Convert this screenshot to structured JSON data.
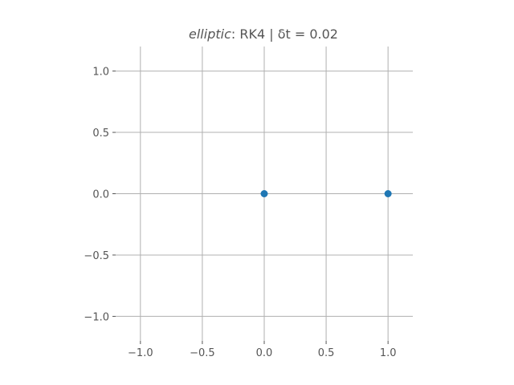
{
  "chart_data": {
    "type": "scatter",
    "title": {
      "italic_part": "elliptic",
      "rest": ": RK4 | δt = 0.02"
    },
    "xlabel": "",
    "ylabel": "",
    "xlim": [
      -1.2,
      1.2
    ],
    "ylim": [
      -1.2,
      1.2
    ],
    "xticks": [
      -1.0,
      -0.5,
      0.0,
      0.5,
      1.0
    ],
    "yticks": [
      -1.0,
      -0.5,
      0.0,
      0.5,
      1.0
    ],
    "xtick_labels": [
      "−1.0",
      "−0.5",
      "0.0",
      "0.5",
      "1.0"
    ],
    "ytick_labels": [
      "−1.0",
      "−0.5",
      "0.0",
      "0.5",
      "1.0"
    ],
    "grid": true,
    "series": [
      {
        "points": [
          {
            "x": 0.0,
            "y": 0.0
          },
          {
            "x": 1.0,
            "y": 0.0
          }
        ]
      }
    ],
    "colors": {
      "marker": "#1f77b4",
      "grid": "#b0b0b0",
      "tick": "#555555"
    }
  }
}
